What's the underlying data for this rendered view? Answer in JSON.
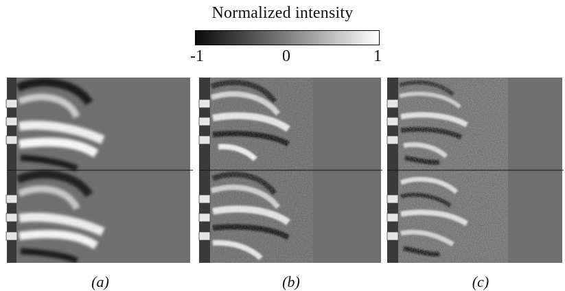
{
  "colorbar": {
    "title": "Normalized intensity",
    "ticks": [
      "-1",
      "0",
      "1"
    ],
    "range": [
      -1,
      1
    ],
    "colors": [
      "#0a0a0a",
      "#7f7f7f",
      "#ffffff"
    ]
  },
  "panels": [
    {
      "label": "(a)"
    },
    {
      "label": "(b)"
    },
    {
      "label": "(c)"
    }
  ],
  "colors": {
    "background_gray": "#6f6f6f",
    "strip": "#3a3a3a",
    "slot": "#e6e6e6",
    "divider": "#111111"
  }
}
